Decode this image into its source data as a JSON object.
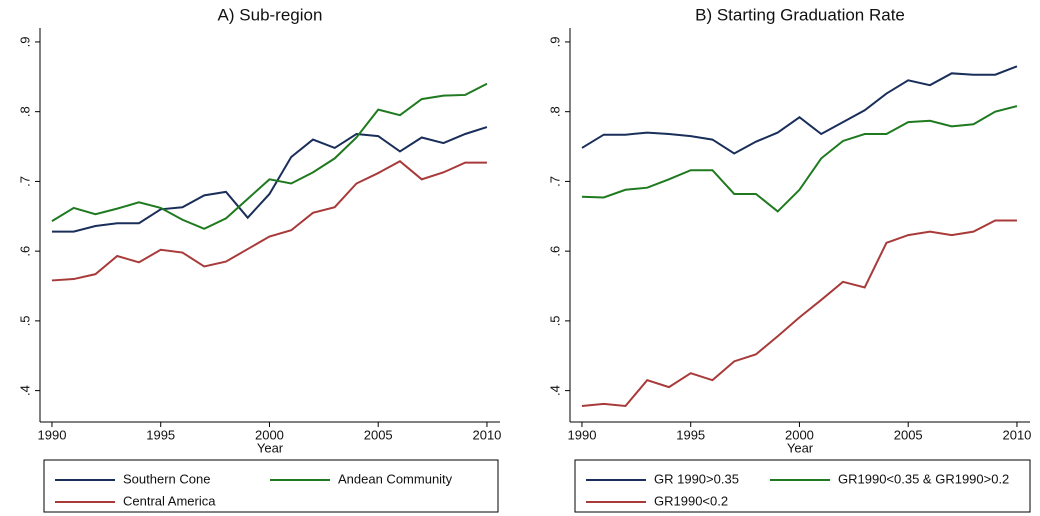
{
  "chart_data": [
    {
      "type": "line",
      "title": "A) Sub-region",
      "x_label": "Year",
      "x": [
        1990,
        1991,
        1992,
        1993,
        1994,
        1995,
        1996,
        1997,
        1998,
        1999,
        2000,
        2001,
        2002,
        2003,
        2004,
        2005,
        2006,
        2007,
        2008,
        2009,
        2010
      ],
      "xlim": [
        1989.45,
        2010.6
      ],
      "xticks": [
        1990,
        1995,
        2000,
        2005,
        2010
      ],
      "ylim": [
        0.355,
        0.92
      ],
      "yticks": [
        {
          "value": 0.4,
          "label": ".4"
        },
        {
          "value": 0.5,
          "label": ".5"
        },
        {
          "value": 0.6,
          "label": ".6"
        },
        {
          "value": 0.7,
          "label": ".7"
        },
        {
          "value": 0.8,
          "label": ".8"
        },
        {
          "value": 0.9,
          "label": ".9"
        }
      ],
      "series": [
        {
          "name": "Southern Cone",
          "color": "#1a2e5a",
          "values": [
            0.628,
            0.628,
            0.636,
            0.64,
            0.64,
            0.66,
            0.663,
            0.68,
            0.685,
            0.648,
            0.682,
            0.735,
            0.76,
            0.748,
            0.768,
            0.765,
            0.743,
            0.763,
            0.755,
            0.768,
            0.778
          ]
        },
        {
          "name": "Andean Community",
          "color": "#1f7a1f",
          "values": [
            0.643,
            0.662,
            0.653,
            0.661,
            0.67,
            0.662,
            0.645,
            0.632,
            0.647,
            0.675,
            0.703,
            0.697,
            0.713,
            0.733,
            0.763,
            0.803,
            0.795,
            0.818,
            0.823,
            0.824,
            0.84
          ]
        },
        {
          "name": "Central America",
          "color": "#a83a3a",
          "values": [
            0.558,
            0.56,
            0.567,
            0.593,
            0.584,
            0.602,
            0.598,
            0.578,
            0.585,
            0.603,
            0.621,
            0.63,
            0.655,
            0.663,
            0.697,
            0.712,
            0.729,
            0.703,
            0.713,
            0.727,
            0.727
          ]
        }
      ]
    },
    {
      "type": "line",
      "title": "B) Starting Graduation Rate",
      "x_label": "Year",
      "x": [
        1990,
        1991,
        1992,
        1993,
        1994,
        1995,
        1996,
        1997,
        1998,
        1999,
        2000,
        2001,
        2002,
        2003,
        2004,
        2005,
        2006,
        2007,
        2008,
        2009,
        2010
      ],
      "xlim": [
        1989.45,
        2010.6
      ],
      "xticks": [
        1990,
        1995,
        2000,
        2005,
        2010
      ],
      "ylim": [
        0.355,
        0.92
      ],
      "yticks": [
        {
          "value": 0.4,
          "label": ".4"
        },
        {
          "value": 0.5,
          "label": ".5"
        },
        {
          "value": 0.6,
          "label": ".6"
        },
        {
          "value": 0.7,
          "label": ".7"
        },
        {
          "value": 0.8,
          "label": ".8"
        },
        {
          "value": 0.9,
          "label": ".9"
        }
      ],
      "series": [
        {
          "name": "GR 1990>0.35",
          "color": "#1a2e5a",
          "values": [
            0.748,
            0.767,
            0.767,
            0.77,
            0.768,
            0.765,
            0.76,
            0.74,
            0.757,
            0.77,
            0.792,
            0.768,
            0.785,
            0.802,
            0.826,
            0.845,
            0.838,
            0.855,
            0.853,
            0.853,
            0.865
          ]
        },
        {
          "name": "GR1990<0.35 & GR1990>0.2",
          "color": "#1f7a1f",
          "values": [
            0.678,
            0.677,
            0.688,
            0.691,
            0.703,
            0.716,
            0.716,
            0.682,
            0.682,
            0.657,
            0.688,
            0.733,
            0.758,
            0.768,
            0.768,
            0.785,
            0.787,
            0.779,
            0.782,
            0.8,
            0.808
          ]
        },
        {
          "name": "GR1990<0.2",
          "color": "#a83a3a",
          "values": [
            0.378,
            0.381,
            0.378,
            0.415,
            0.405,
            0.425,
            0.415,
            0.442,
            0.452,
            0.478,
            0.505,
            0.53,
            0.556,
            0.548,
            0.612,
            0.623,
            0.628,
            0.623,
            0.628,
            0.644,
            0.644
          ]
        }
      ]
    }
  ]
}
